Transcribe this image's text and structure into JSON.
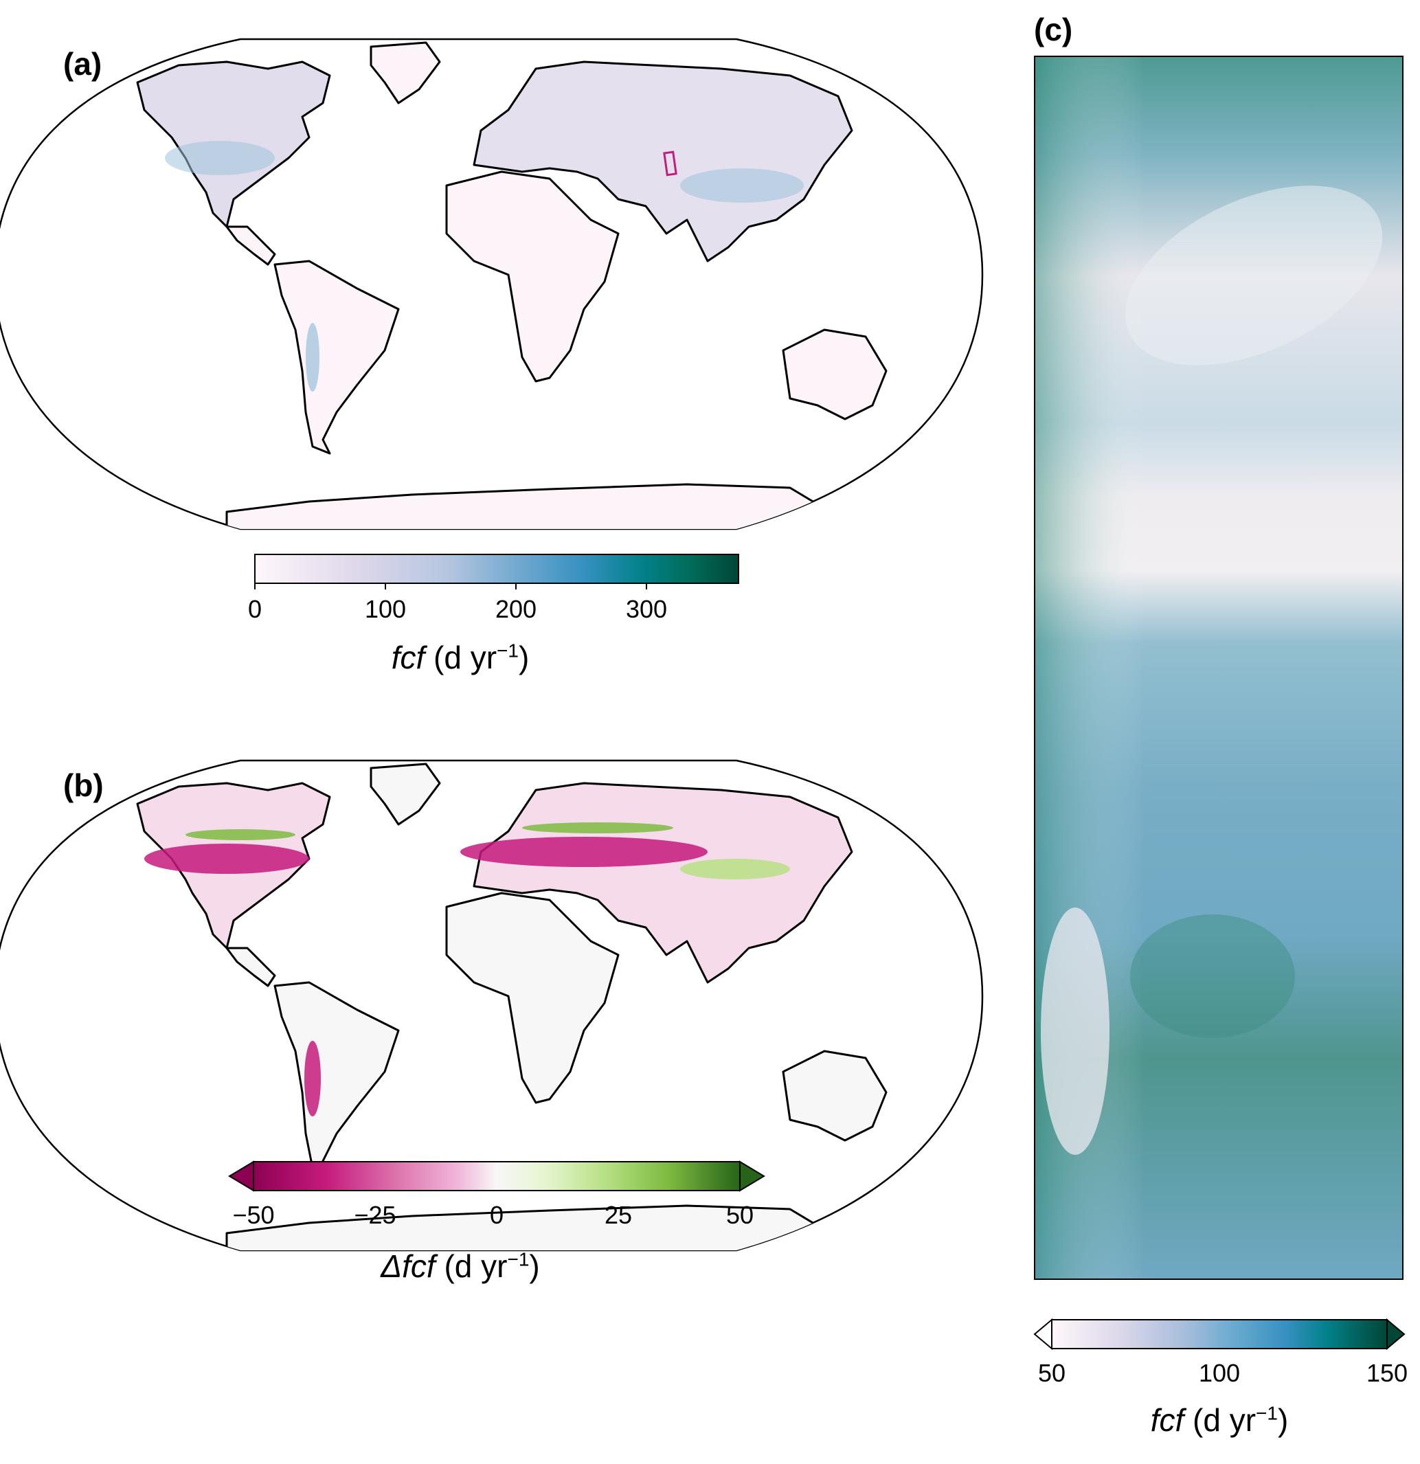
{
  "panels": {
    "a": {
      "label": "(a)",
      "colorbar": {
        "ticks": [
          "0",
          "100",
          "200",
          "300"
        ],
        "tick_values": [
          0,
          100,
          200,
          300
        ],
        "range": [
          0,
          370
        ],
        "label_var": "fcf",
        "label_units": "(d yr",
        "label_exp": "−1",
        "label_close": ")",
        "colormap": "PuBuGn",
        "colors": [
          "#fff7fb",
          "#ece2f0",
          "#d0d1e6",
          "#a6bddb",
          "#67a9cf",
          "#3690c0",
          "#02818a",
          "#016c59",
          "#014636"
        ]
      },
      "inset_box_color": "#c51b7d"
    },
    "b": {
      "label": "(b)",
      "colorbar": {
        "ticks": [
          "−50",
          "−25",
          "0",
          "25",
          "50"
        ],
        "tick_values": [
          -50,
          -25,
          0,
          25,
          50
        ],
        "range": [
          -50,
          50
        ],
        "extend": "both",
        "label_delta": "Δ",
        "label_var": "fcf",
        "label_units": "(d yr",
        "label_exp": "−1",
        "label_close": ")",
        "colormap": "PiYG",
        "colors": [
          "#8e0152",
          "#c51b7d",
          "#de77ae",
          "#f1b6da",
          "#fde0ef",
          "#f7f7f7",
          "#e6f5d0",
          "#b8e186",
          "#7fbc41",
          "#4d9221",
          "#276419"
        ]
      }
    },
    "c": {
      "label": "(c)",
      "colorbar": {
        "ticks": [
          "50",
          "100",
          "150"
        ],
        "tick_values": [
          50,
          100,
          150
        ],
        "range": [
          50,
          150
        ],
        "extend": "both",
        "label_var": "fcf",
        "label_units": "(d yr",
        "label_exp": "−1",
        "label_close": ")",
        "colormap": "PuBuGn",
        "colors": [
          "#fff7fb",
          "#ece2f0",
          "#d0d1e6",
          "#a6bddb",
          "#67a9cf",
          "#3690c0",
          "#02818a",
          "#016c59",
          "#014636"
        ]
      }
    }
  }
}
